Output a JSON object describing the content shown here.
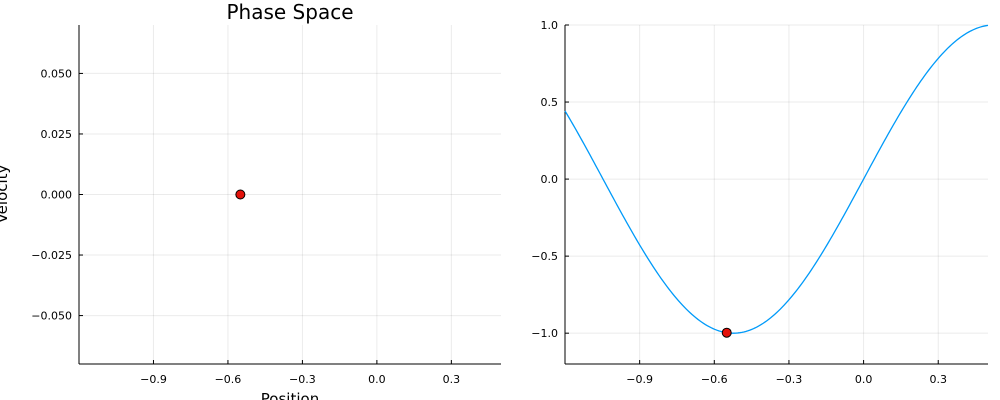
{
  "chart_data": [
    {
      "type": "scatter",
      "title": "Phase Space",
      "xlabel": "Position",
      "ylabel": "Velocity",
      "xlim": [
        -1.2,
        0.5
      ],
      "ylim": [
        -0.07,
        0.07
      ],
      "xticks": [
        -0.9,
        -0.6,
        -0.3,
        0.0,
        0.3
      ],
      "xtick_labels": [
        "−0.9",
        "−0.6",
        "−0.3",
        "0.0",
        "0.3"
      ],
      "yticks": [
        -0.05,
        -0.025,
        0.0,
        0.025,
        0.05
      ],
      "ytick_labels": [
        "−0.050",
        "−0.025",
        "0.000",
        "0.025",
        "0.050"
      ],
      "grid": true,
      "legend": "none",
      "series": [
        {
          "x": [
            -0.55
          ],
          "y": [
            0.0
          ],
          "color": "#e3120b"
        }
      ]
    },
    {
      "type": "line",
      "title": "",
      "xlabel": "",
      "ylabel": "",
      "xlim": [
        -1.2,
        0.5
      ],
      "ylim": [
        -1.2,
        1.0
      ],
      "xticks": [
        -0.9,
        -0.6,
        -0.3,
        0.0,
        0.3
      ],
      "xtick_labels": [
        "−0.9",
        "−0.6",
        "−0.3",
        "0.0",
        "0.3"
      ],
      "yticks": [
        -1.0,
        -0.5,
        0.0,
        0.5,
        1.0
      ],
      "ytick_labels": [
        "−1.0",
        "−0.5",
        "0.0",
        "0.5",
        "1.0"
      ],
      "grid": true,
      "legend": "none",
      "curve": {
        "function": "sin(3x)",
        "x_start": -1.2,
        "x_end": 0.5,
        "color": "#009af9"
      },
      "marker": {
        "x": -0.55,
        "y": -0.997,
        "color": "#e3120b"
      }
    }
  ]
}
